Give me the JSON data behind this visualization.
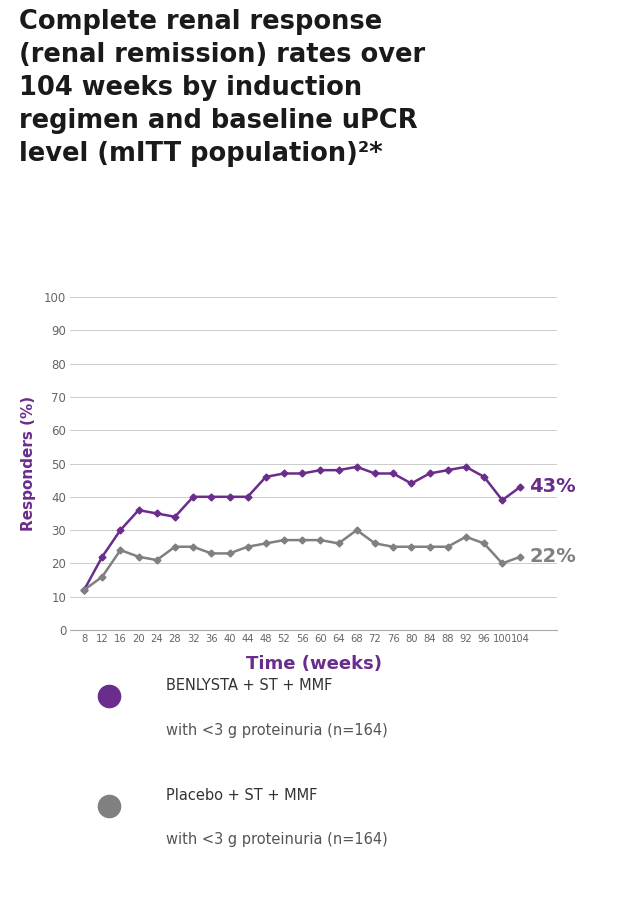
{
  "title_line1": "Complete renal response",
  "title_line2": "(renal remission) rates over",
  "title_line3": "104 weeks by induction",
  "title_line4": "regimen and baseline uPCR",
  "title_line5": "level (mITT population)²*",
  "title_color": "#1a1a1a",
  "xlabel": "Time (weeks)",
  "xlabel_color": "#6b2d8b",
  "ylabel": "Responders (%)",
  "ylabel_color": "#6b2d8b",
  "x_ticks": [
    8,
    12,
    16,
    20,
    24,
    28,
    32,
    36,
    40,
    44,
    48,
    52,
    56,
    60,
    64,
    68,
    72,
    76,
    80,
    84,
    88,
    92,
    96,
    100,
    104
  ],
  "ylim": [
    0,
    100
  ],
  "yticks": [
    0,
    10,
    20,
    30,
    40,
    50,
    60,
    70,
    80,
    90,
    100
  ],
  "purple_color": "#6b2d8b",
  "gray_color": "#808080",
  "purple_x": [
    8,
    12,
    16,
    20,
    24,
    28,
    32,
    36,
    40,
    44,
    48,
    52,
    56,
    60,
    64,
    68,
    72,
    76,
    80,
    84,
    88,
    92,
    96,
    100,
    104
  ],
  "gray_x": [
    8,
    12,
    16,
    20,
    24,
    28,
    32,
    36,
    40,
    44,
    48,
    52,
    56,
    60,
    64,
    68,
    72,
    76,
    80,
    84,
    88,
    92,
    96,
    100,
    104
  ],
  "purple_y": [
    12,
    22,
    30,
    36,
    35,
    34,
    40,
    40,
    40,
    40,
    46,
    47,
    47,
    48,
    48,
    49,
    47,
    47,
    44,
    47,
    48,
    49,
    46,
    39,
    43
  ],
  "gray_y": [
    12,
    16,
    24,
    22,
    21,
    25,
    25,
    23,
    23,
    25,
    26,
    27,
    27,
    27,
    26,
    30,
    26,
    25,
    25,
    25,
    25,
    28,
    26,
    20,
    22
  ],
  "end_label_purple": "43",
  "end_label_gray": "22",
  "legend_purple_label1": "BENLYSTA + ST + MMF",
  "legend_purple_label2": "with <3 g proteinuria (n=164)",
  "legend_gray_label1": "Placebo + ST + MMF",
  "legend_gray_label2": "with <3 g proteinuria (n=164)",
  "background_color": "#ffffff",
  "grid_color": "#cccccc"
}
